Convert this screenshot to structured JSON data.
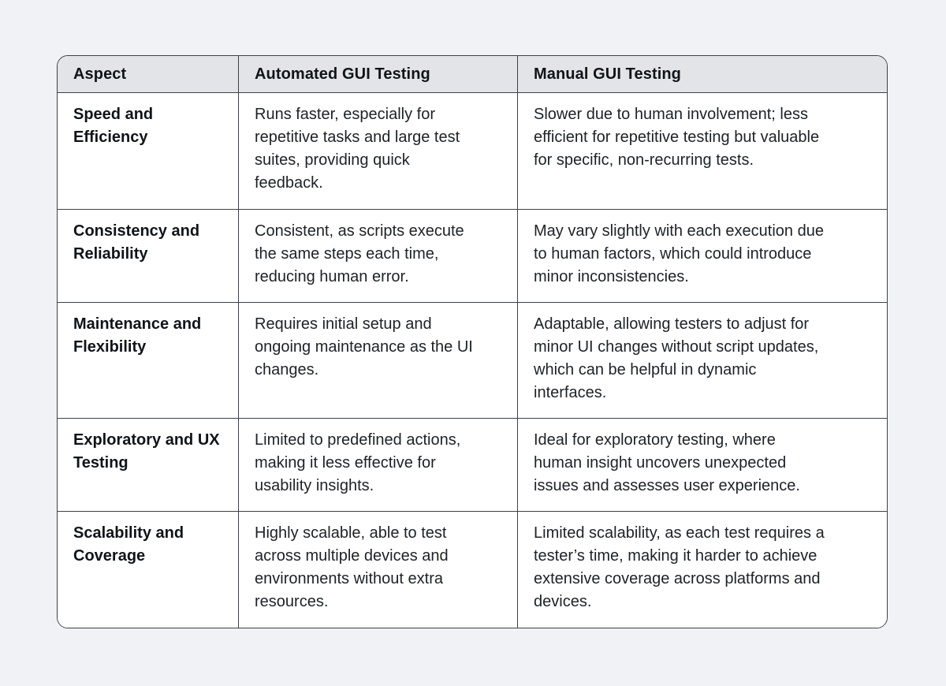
{
  "page": {
    "background_color": "#f0f2f5"
  },
  "table": {
    "colors": {
      "header_bg": "#e2e4e7",
      "cell_bg": "#ffffff",
      "border": "#3d4147",
      "heading_text": "#101419",
      "body_text": "#1e2126"
    },
    "header": [
      "Aspect",
      "Automated GUI Testing",
      "Manual GUI Testing"
    ],
    "rows": [
      {
        "aspect": "Speed and Efficiency",
        "automated": "Runs faster, especially for repetitive tasks and large test suites, providing quick feedback.",
        "manual": "Slower due to human involvement; less efficient for repetitive testing but valuable for specific, non-recurring tests."
      },
      {
        "aspect": "Consistency and Reliability",
        "automated": "Consistent, as scripts execute the same steps each time, reducing human error.",
        "manual": "May vary slightly with each execution due to human factors, which could introduce minor inconsistencies."
      },
      {
        "aspect": "Maintenance and Flexibility",
        "automated": "Requires initial setup and ongoing maintenance as the UI changes.",
        "manual": "Adaptable, allowing testers to adjust for minor UI changes without script updates, which can be helpful in dynamic interfaces."
      },
      {
        "aspect": "Exploratory and UX Testing",
        "automated": "Limited to predefined actions, making it less effective for usability insights.",
        "manual": "Ideal for exploratory testing, where human insight uncovers unexpected issues and assesses user experience."
      },
      {
        "aspect": "Scalability and Coverage",
        "automated": "Highly scalable, able to test across multiple devices and environments without extra resources.",
        "manual": "Limited scalability, as each test requires a tester’s time, making it harder to achieve extensive coverage across platforms and devices."
      }
    ]
  }
}
